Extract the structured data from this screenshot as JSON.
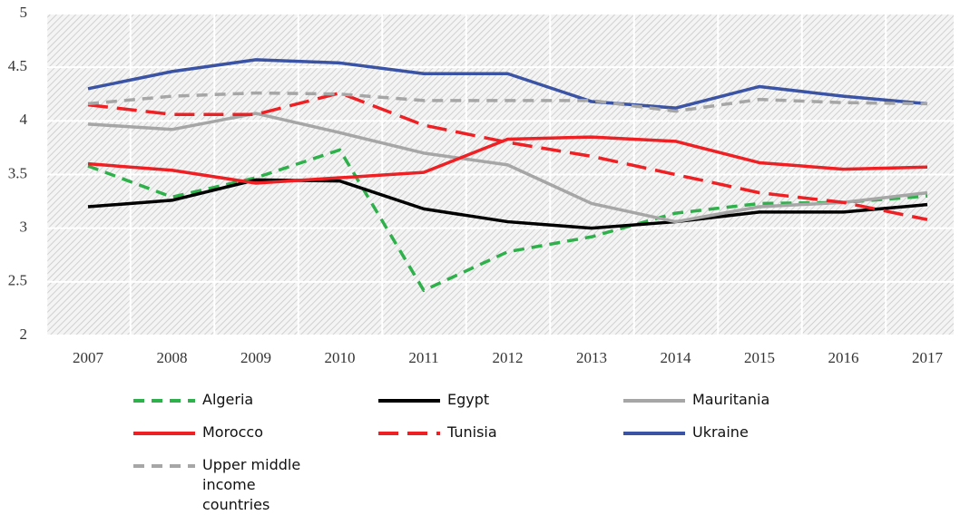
{
  "chart_data": {
    "type": "line",
    "categories": [
      "2007",
      "2008",
      "2009",
      "2010",
      "2011",
      "2012",
      "2013",
      "2014",
      "2015",
      "2016",
      "2017"
    ],
    "ylim": [
      2,
      5
    ],
    "yticks": [
      2,
      2.5,
      3,
      3.5,
      4,
      4.5,
      5
    ],
    "grid": true,
    "series": [
      {
        "name": "Algeria",
        "color": "#2eb04a",
        "style": "dashed",
        "values": [
          3.58,
          3.29,
          3.47,
          3.73,
          2.42,
          2.78,
          2.92,
          3.14,
          3.23,
          3.24,
          3.3
        ]
      },
      {
        "name": "Egypt",
        "color": "#000000",
        "style": "solid",
        "values": [
          3.2,
          3.26,
          3.45,
          3.44,
          3.18,
          3.06,
          3.0,
          3.06,
          3.15,
          3.15,
          3.22
        ]
      },
      {
        "name": "Mauritania",
        "color": "#a6a6a6",
        "style": "solid",
        "values": [
          3.97,
          3.92,
          4.07,
          3.89,
          3.7,
          3.59,
          3.23,
          3.06,
          3.2,
          3.24,
          3.33
        ]
      },
      {
        "name": "Morocco",
        "color": "#ee2024",
        "style": "solid",
        "values": [
          3.6,
          3.54,
          3.42,
          3.47,
          3.52,
          3.83,
          3.85,
          3.81,
          3.61,
          3.55,
          3.57
        ]
      },
      {
        "name": "Tunisia",
        "color": "#ee2024",
        "style": "dashed",
        "values": [
          4.15,
          4.06,
          4.06,
          4.26,
          3.96,
          3.8,
          3.67,
          3.5,
          3.33,
          3.24,
          3.08
        ]
      },
      {
        "name": "Ukraine",
        "color": "#3a53a4",
        "style": "solid",
        "values": [
          4.3,
          4.46,
          4.57,
          4.54,
          4.44,
          4.44,
          4.18,
          4.12,
          4.32,
          4.23,
          4.16
        ]
      },
      {
        "name": "Upper middle income countries",
        "color": "#a6a6a6",
        "style": "dashed",
        "values": [
          4.16,
          4.23,
          4.26,
          4.25,
          4.19,
          4.19,
          4.19,
          4.09,
          4.2,
          4.17,
          4.16
        ]
      }
    ]
  }
}
